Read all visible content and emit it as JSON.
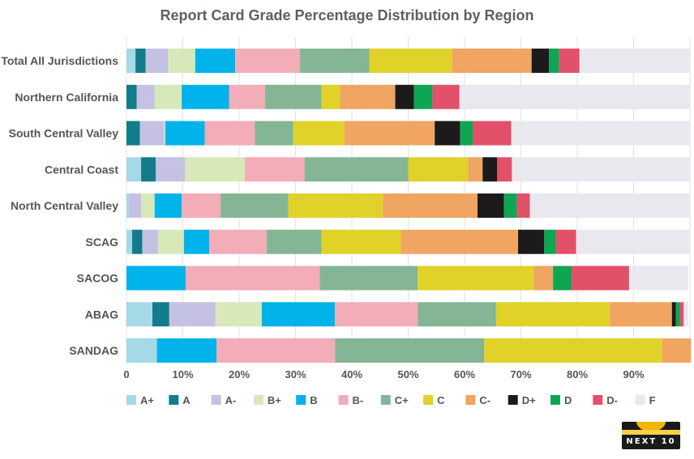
{
  "chart_data": {
    "type": "bar",
    "orientation": "horizontal",
    "stacked": true,
    "title": "Report Card Grade Percentage Distribution by Region",
    "categories": [
      "Total All Jurisdictions",
      "Northern California",
      "South Central Valley",
      "Central Coast",
      "North Central Valley",
      "SCAG",
      "SACOG",
      "ABAG",
      "SANDAG"
    ],
    "xlim": [
      0,
      100
    ],
    "x_ticks": [
      "0",
      "10%",
      "20%",
      "30%",
      "40%",
      "50%",
      "60%",
      "70%",
      "80%",
      "90%"
    ],
    "grid": true,
    "legend_position": "bottom",
    "series": [
      {
        "name": "A+",
        "color": "#a6d9e6",
        "values": [
          1.6,
          0,
          0,
          2.6,
          0.4,
          1.0,
          0,
          4.6,
          5.4
        ]
      },
      {
        "name": "A",
        "color": "#127c8c",
        "values": [
          1.8,
          1.8,
          2.4,
          2.6,
          0,
          1.8,
          0,
          3.0,
          0
        ]
      },
      {
        "name": "A-",
        "color": "#c4c1e2",
        "values": [
          4.0,
          3.2,
          4.3,
          5.2,
          2.2,
          2.8,
          0,
          8.2,
          0
        ]
      },
      {
        "name": "B+",
        "color": "#d7e9b8",
        "values": [
          4.8,
          4.8,
          0.2,
          10.6,
          2.4,
          4.6,
          0,
          8.2,
          0
        ]
      },
      {
        "name": "B",
        "color": "#00b3ea",
        "values": [
          7.1,
          8.4,
          7.0,
          0,
          4.8,
          4.5,
          10.5,
          13.0,
          10.6
        ]
      },
      {
        "name": "B-",
        "color": "#f2adb8",
        "values": [
          11.5,
          6.4,
          8.9,
          10.6,
          6.9,
          10.2,
          23.8,
          14.7,
          21.0
        ]
      },
      {
        "name": "C+",
        "color": "#84b695",
        "values": [
          12.3,
          10.0,
          6.8,
          18.4,
          12.0,
          9.7,
          17.4,
          13.9,
          26.5
        ]
      },
      {
        "name": "C",
        "color": "#e1d22a",
        "values": [
          14.7,
          3.3,
          9.1,
          10.6,
          16.8,
          14.1,
          20.6,
          20.2,
          31.6
        ]
      },
      {
        "name": "C-",
        "color": "#f0a562",
        "values": [
          14.1,
          9.8,
          16.0,
          2.6,
          16.8,
          20.8,
          3.4,
          11.0,
          5.1
        ]
      },
      {
        "name": "D+",
        "color": "#1c1a1b",
        "values": [
          3.1,
          3.3,
          4.5,
          2.6,
          4.7,
          4.6,
          0,
          0.7,
          0
        ]
      },
      {
        "name": "D",
        "color": "#0fa653",
        "values": [
          1.8,
          3.3,
          2.3,
          0,
          2.3,
          2.1,
          3.3,
          0.7,
          0
        ]
      },
      {
        "name": "D-",
        "color": "#e25069",
        "values": [
          3.6,
          4.8,
          6.8,
          2.6,
          2.3,
          3.6,
          10.2,
          0.7,
          0
        ]
      },
      {
        "name": "F",
        "color": "#e9e8ee",
        "values": [
          19.6,
          40.9,
          31.7,
          31.6,
          28.3,
          20.2,
          10.5,
          0.8,
          0
        ]
      }
    ]
  },
  "logo": {
    "text": "NEXT 10"
  }
}
